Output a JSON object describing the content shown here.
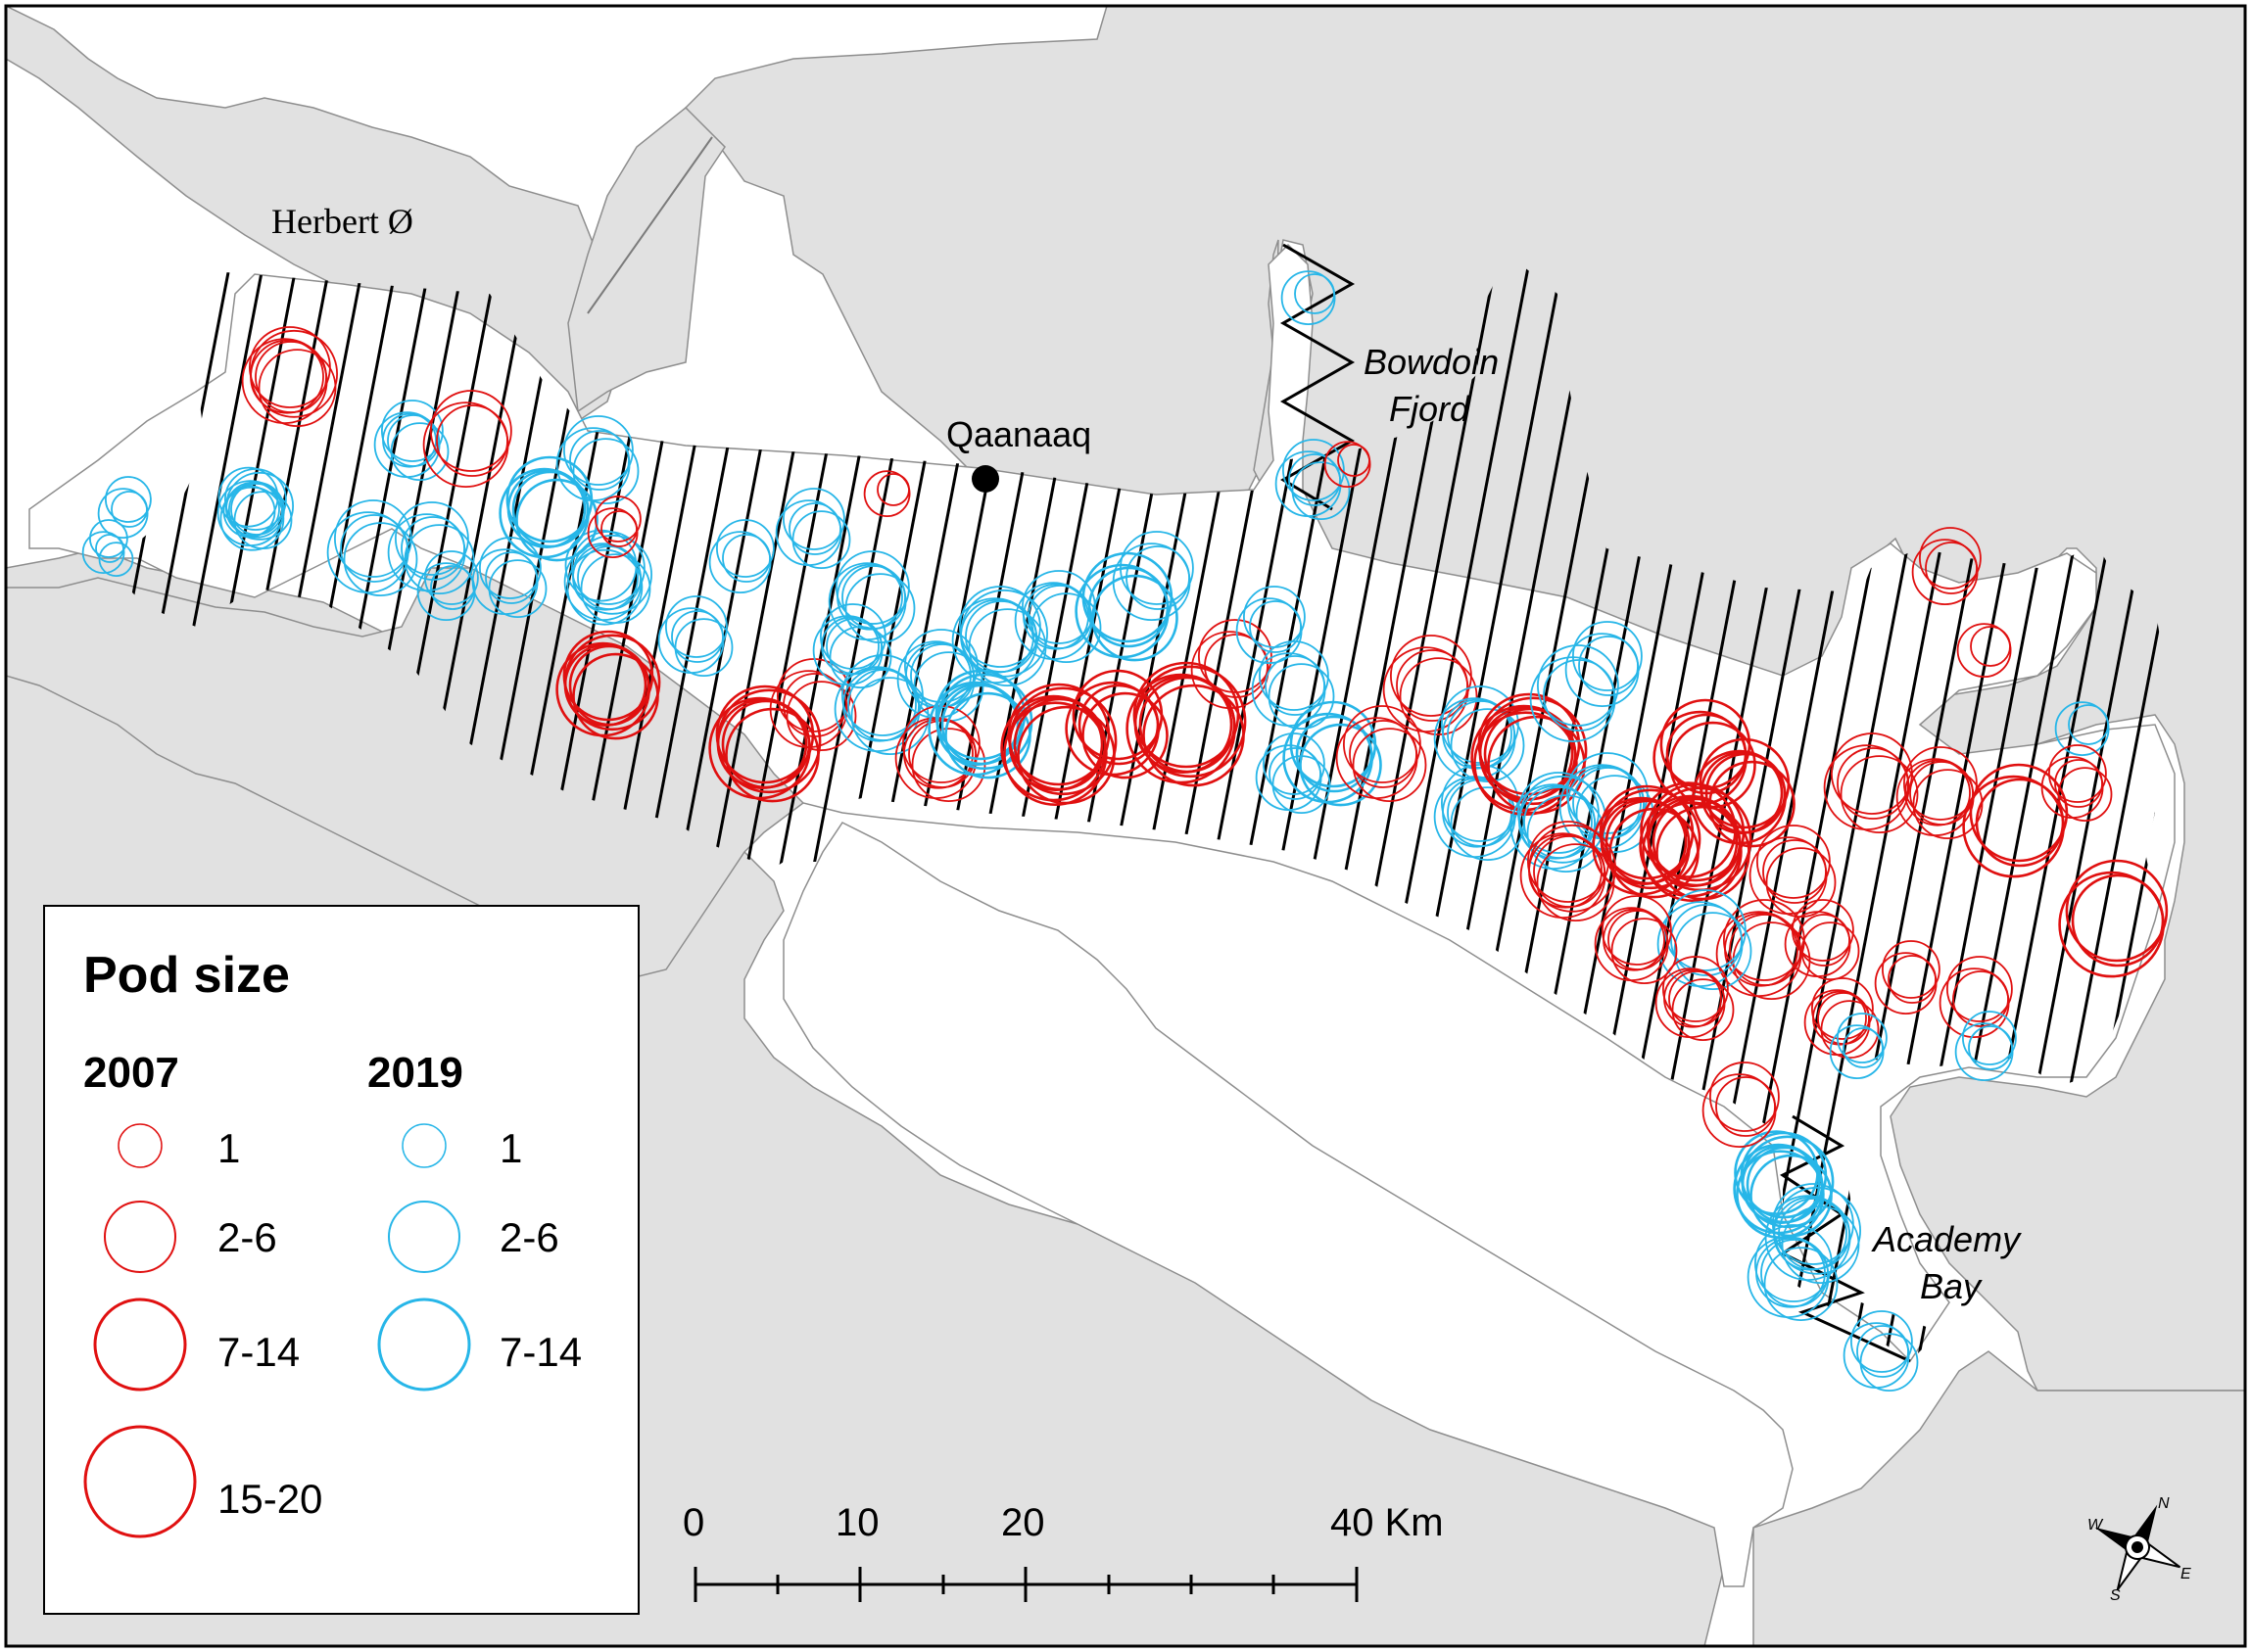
{
  "places": {
    "herbert": "Herbert Ø",
    "qaanaaq": "Qaanaaq",
    "bowdoin_line1": "Bowdoin",
    "bowdoin_line2": "Fjord",
    "academy_line1": "Academy",
    "academy_line2": "Bay"
  },
  "legend": {
    "title": "Pod size",
    "year_a": "2007",
    "year_b": "2019",
    "classes_a": [
      "1",
      "2-6",
      "7-14",
      "15-20"
    ],
    "classes_b": [
      "1",
      "2-6",
      "7-14"
    ]
  },
  "scalebar": {
    "ticks": [
      "0",
      "10",
      "20",
      "40 Km"
    ]
  },
  "compass": {
    "n": "N",
    "s": "S",
    "e": "E",
    "w": "W"
  },
  "colors": {
    "land": "#e1e1e1",
    "water": "#ffffff",
    "year_2007": "#e01010",
    "year_2019": "#27b6e8",
    "transect": "#000000"
  }
}
